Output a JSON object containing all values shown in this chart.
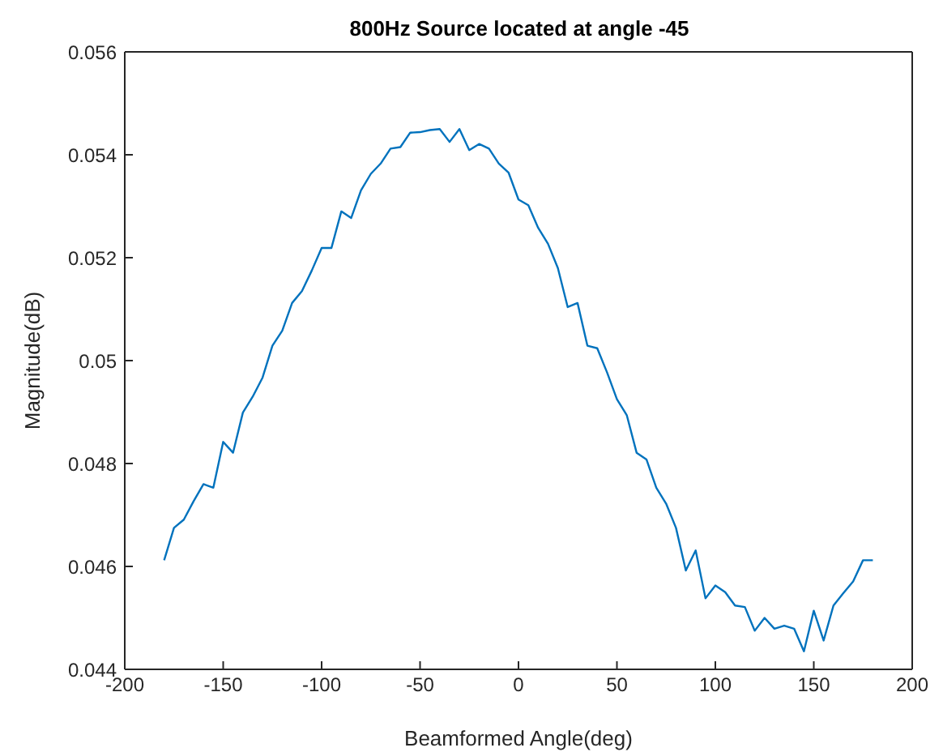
{
  "chart_data": {
    "type": "line",
    "title": "800Hz Source located at angle -45",
    "xlabel": "Beamformed Angle(deg)",
    "ylabel": "Magnitude(dB)",
    "x": [
      -180,
      -175,
      -170,
      -165,
      -160,
      -155,
      -150,
      -145,
      -140,
      -135,
      -130,
      -125,
      -120,
      -115,
      -110,
      -105,
      -100,
      -95,
      -90,
      -85,
      -80,
      -75,
      -70,
      -65,
      -60,
      -55,
      -50,
      -45,
      -40,
      -35,
      -30,
      -25,
      -20,
      -15,
      -10,
      -5,
      0,
      5,
      10,
      15,
      20,
      25,
      30,
      35,
      40,
      45,
      50,
      55,
      60,
      65,
      70,
      75,
      80,
      85,
      90,
      95,
      100,
      105,
      110,
      115,
      120,
      125,
      130,
      135,
      140,
      145,
      150,
      155,
      160,
      165,
      170,
      175,
      180
    ],
    "series": [
      {
        "color": "#0072bd",
        "values": [
          0.04612,
          0.04675,
          0.04691,
          0.04727,
          0.0476,
          0.04753,
          0.04842,
          0.04821,
          0.04899,
          0.0493,
          0.04967,
          0.05029,
          0.05058,
          0.05112,
          0.05135,
          0.05175,
          0.05219,
          0.05219,
          0.0529,
          0.05277,
          0.05331,
          0.05363,
          0.05383,
          0.05412,
          0.05415,
          0.05443,
          0.05444,
          0.05448,
          0.0545,
          0.05425,
          0.0545,
          0.05409,
          0.05421,
          0.05412,
          0.05383,
          0.05365,
          0.05313,
          0.05302,
          0.05258,
          0.05227,
          0.0518,
          0.05104,
          0.05112,
          0.05029,
          0.05024,
          0.04977,
          0.04925,
          0.04894,
          0.04821,
          0.04808,
          0.04753,
          0.04722,
          0.04675,
          0.04592,
          0.04631,
          0.04538,
          0.04563,
          0.0455,
          0.04524,
          0.04521,
          0.04475,
          0.045,
          0.04479,
          0.04485,
          0.04479,
          0.04435,
          0.04514,
          0.04456,
          0.04524,
          0.04548,
          0.04571,
          0.04612,
          0.04612
        ]
      }
    ],
    "xlim": [
      -200,
      200
    ],
    "xticks": [
      -200,
      -150,
      -100,
      -50,
      0,
      50,
      100,
      150,
      200
    ],
    "ylim": [
      0.044,
      0.056
    ],
    "yticks": [
      0.044,
      0.046,
      0.048,
      0.05,
      0.052,
      0.054,
      0.056
    ],
    "grid": false,
    "legend": false,
    "marker": "none",
    "line_style": "solid"
  }
}
